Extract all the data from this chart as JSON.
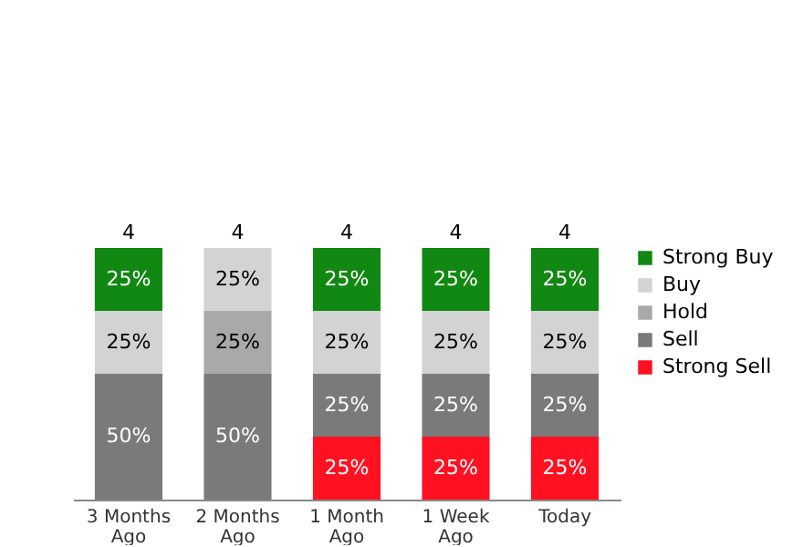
{
  "chart_data": {
    "type": "bar",
    "stacked": true,
    "legend": "right",
    "categories": [
      "3 Months Ago",
      "2 Months Ago",
      "1 Month Ago",
      "1 Week Ago",
      "Today"
    ],
    "series": [
      {
        "name": "Strong Sell",
        "color": "#ff1122",
        "values": [
          null,
          null,
          25,
          25,
          25
        ],
        "value_labels": [
          null,
          null,
          "25%",
          "25%",
          "25%"
        ]
      },
      {
        "name": "Sell",
        "color": "#7a7a7a",
        "values": [
          50,
          50,
          25,
          25,
          25
        ],
        "value_labels": [
          "50%",
          "50%",
          "25%",
          "25%",
          "25%"
        ]
      },
      {
        "name": "Hold",
        "color": "#a9a9a9",
        "values": [
          null,
          25,
          null,
          null,
          null
        ],
        "value_labels": [
          null,
          "25%",
          null,
          null,
          null
        ]
      },
      {
        "name": "Buy",
        "color": "#d3d3d3",
        "values": [
          25,
          25,
          25,
          25,
          25
        ],
        "value_labels": [
          "25%",
          "25%",
          "25%",
          "25%",
          "25%"
        ]
      },
      {
        "name": "Strong Buy",
        "color": "#118811",
        "values": [
          25,
          null,
          25,
          25,
          25
        ],
        "value_labels": [
          "25%",
          null,
          "25%",
          "25%",
          "25%"
        ]
      }
    ],
    "annotations": [
      {
        "text": "4",
        "x": "3 Months Ago",
        "y": 100
      },
      {
        "text": "4",
        "x": "2 Months Ago",
        "y": 100
      },
      {
        "text": "4",
        "x": "1 Month Ago",
        "y": 100
      },
      {
        "text": "4",
        "x": "1 Week Ago",
        "y": 100
      },
      {
        "text": "4",
        "x": "Today",
        "y": 100
      }
    ]
  }
}
